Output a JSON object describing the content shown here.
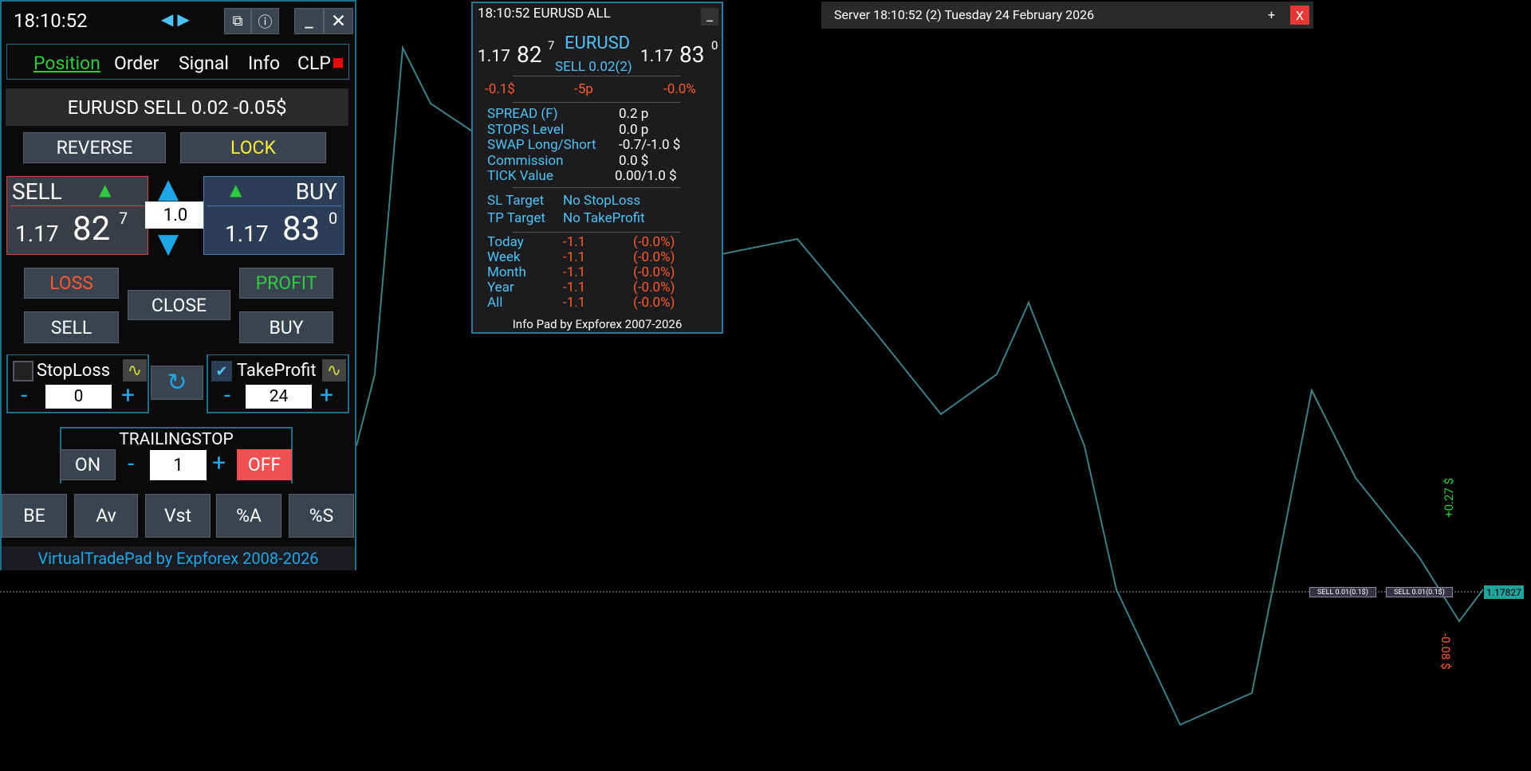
{
  "trade_pad": {
    "time": "18:10:52",
    "tabs": [
      "Position",
      "Order",
      "Signal",
      "Info",
      "CLP"
    ],
    "position_summary": "EURUSD SELL 0.02 -0.05$",
    "buttons": {
      "reverse": "REVERSE",
      "lock": "LOCK",
      "loss": "LOSS",
      "close": "CLOSE",
      "profit": "PROFIT",
      "sell": "SELL",
      "buy": "BUY"
    },
    "sell": {
      "label": "SELL",
      "big": "1.17",
      "pips": "82",
      "point": "7"
    },
    "buy": {
      "label": "BUY",
      "big": "1.17",
      "pips": "83",
      "point": "0"
    },
    "lot": "1.0",
    "stoploss": {
      "label": "StopLoss",
      "value": "0"
    },
    "takeprofit": {
      "label": "TakeProfit",
      "value": "24"
    },
    "trailing": {
      "label": "TRAILINGSTOP",
      "on": "ON",
      "value": "1",
      "off": "OFF"
    },
    "bottom_buttons": [
      "BE",
      "Av",
      "Vst",
      "%A",
      "%S"
    ],
    "footer": "VirtualTradePad by Expforex 2008-2026"
  },
  "info_pad": {
    "header": "18:10:52  EURUSD  ALL",
    "sell": {
      "big": "1.17",
      "pips": "82",
      "point": "7"
    },
    "symbol": "EURUSD",
    "position": "SELL  0.02(2)",
    "buy": {
      "big": "1.17",
      "pips": "83",
      "point": "0"
    },
    "pl": [
      "-0.1$",
      "-5p",
      "-0.0%"
    ],
    "specs": [
      [
        "SPREAD (F)",
        "0.2 p"
      ],
      [
        "STOPS Level",
        "0.0 p"
      ],
      [
        "SWAP Long/Short",
        "-0.7/-1.0 $"
      ],
      [
        "Commission",
        "0.0 $"
      ],
      [
        "TICK Value",
        "0.00/1.0 $"
      ]
    ],
    "targets": [
      [
        "SL Target",
        "No StopLoss"
      ],
      [
        "TP Target",
        "No TakeProfit"
      ]
    ],
    "stats": [
      [
        "Today",
        "-1.1",
        "(-0.0%)"
      ],
      [
        "Week",
        "-1.1",
        "(-0.0%)"
      ],
      [
        "Month",
        "-1.1",
        "(-0.0%)"
      ],
      [
        "Year",
        "-1.1",
        "(-0.0%)"
      ],
      [
        "All",
        "-1.1",
        "(-0.0%)"
      ]
    ],
    "footer": "Info Pad by Expforex 2007-2026"
  },
  "server_bar": {
    "text": "Server 18:10:52 (2) Tuesday 24 February 2026",
    "plus": "+",
    "close": "X"
  },
  "chart": {
    "price_label": "1.17827",
    "orders": [
      "SELL 0.01(0.1$)",
      "SELL 0.01(0.1$)"
    ],
    "profit_label": "+0.27 $",
    "loss_label": "-0.08 $"
  }
}
